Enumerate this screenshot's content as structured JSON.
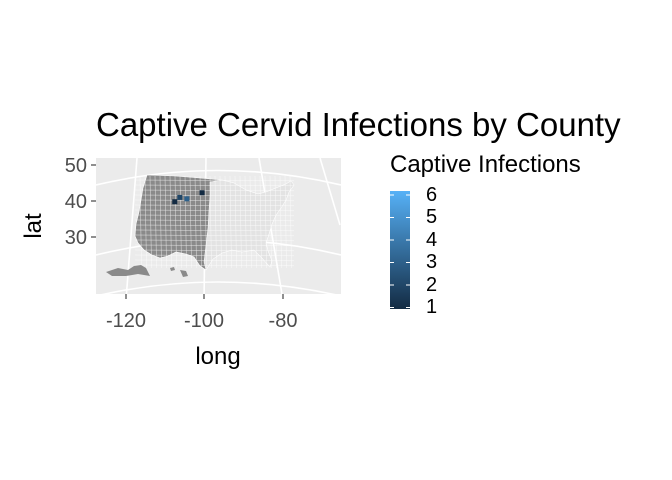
{
  "chart_data": {
    "type": "choropleth-map",
    "title": "Captive Cervid Infections by County",
    "xlabel": "long",
    "ylabel": "lat",
    "x_ticks": [
      -120,
      -100,
      -80
    ],
    "y_ticks": [
      30,
      40,
      50
    ],
    "xlim": [
      -128,
      -58
    ],
    "ylim": [
      19,
      52
    ],
    "grid": true,
    "legend": {
      "title": "Captive Infections",
      "position": "right",
      "breaks": [
        6,
        5,
        4,
        3,
        2,
        1
      ],
      "color_low": "#132B43",
      "color_high": "#56B1F7"
    },
    "colors": {
      "panel": "#ebebeb",
      "grid": "#ffffff",
      "county_no_data": "#7f7f7f",
      "county_border": "#ffffff",
      "text_axis_ticks": "#4d4d4d",
      "text_main": "#000000"
    },
    "highlighted_counties": [
      {
        "long": -100.5,
        "lat": 42.3,
        "value": 1
      },
      {
        "long": -106.2,
        "lat": 41.0,
        "value": 2
      },
      {
        "long": -107.5,
        "lat": 39.8,
        "value": 1
      },
      {
        "long": -104.4,
        "lat": 40.6,
        "value": 3
      }
    ]
  }
}
